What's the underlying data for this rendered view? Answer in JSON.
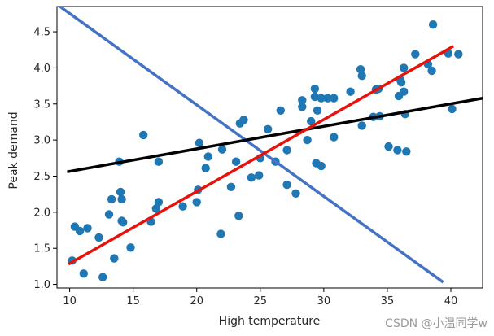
{
  "chart_data": {
    "type": "scatter",
    "title": "",
    "xlabel": "High temperature",
    "ylabel": "Peak demand",
    "xlim": [
      9.0,
      42.5
    ],
    "ylim": [
      0.95,
      4.85
    ],
    "x_ticks": [
      10,
      15,
      20,
      25,
      30,
      35,
      40
    ],
    "y_ticks": [
      1.0,
      1.5,
      2.0,
      2.5,
      3.0,
      3.5,
      4.0,
      4.5
    ],
    "x_tick_labels": [
      "10",
      "15",
      "20",
      "25",
      "30",
      "35",
      "40"
    ],
    "y_tick_labels": [
      "1.0",
      "1.5",
      "2.0",
      "2.5",
      "3.0",
      "3.5",
      "4.0",
      "4.5"
    ],
    "grid": false,
    "points_color": "#1f77b4",
    "points": [
      [
        10.2,
        1.33
      ],
      [
        10.4,
        1.8
      ],
      [
        10.8,
        1.74
      ],
      [
        11.1,
        1.15
      ],
      [
        11.4,
        1.78
      ],
      [
        12.3,
        1.65
      ],
      [
        12.6,
        1.1
      ],
      [
        13.1,
        1.97
      ],
      [
        13.3,
        2.18
      ],
      [
        13.5,
        1.36
      ],
      [
        13.9,
        2.7
      ],
      [
        14.1,
        2.18
      ],
      [
        14.0,
        2.28
      ],
      [
        14.1,
        1.88
      ],
      [
        14.2,
        1.86
      ],
      [
        14.8,
        1.51
      ],
      [
        15.8,
        3.07
      ],
      [
        16.4,
        1.87
      ],
      [
        16.8,
        2.05
      ],
      [
        17.0,
        2.14
      ],
      [
        17.0,
        2.7
      ],
      [
        18.9,
        2.08
      ],
      [
        20.0,
        2.14
      ],
      [
        20.1,
        2.31
      ],
      [
        20.2,
        2.96
      ],
      [
        20.7,
        2.61
      ],
      [
        20.9,
        2.77
      ],
      [
        21.9,
        1.7
      ],
      [
        22.0,
        2.87
      ],
      [
        22.7,
        2.35
      ],
      [
        23.1,
        2.7
      ],
      [
        23.3,
        1.95
      ],
      [
        23.4,
        3.23
      ],
      [
        23.7,
        3.28
      ],
      [
        24.3,
        2.48
      ],
      [
        24.9,
        2.51
      ],
      [
        25.0,
        2.75
      ],
      [
        25.6,
        3.15
      ],
      [
        26.2,
        2.7
      ],
      [
        26.6,
        3.41
      ],
      [
        27.1,
        2.86
      ],
      [
        27.1,
        2.38
      ],
      [
        27.8,
        2.26
      ],
      [
        28.3,
        3.55
      ],
      [
        28.3,
        3.46
      ],
      [
        28.7,
        3.0
      ],
      [
        29.0,
        3.26
      ],
      [
        29.3,
        3.71
      ],
      [
        29.3,
        3.6
      ],
      [
        29.4,
        2.68
      ],
      [
        29.5,
        3.41
      ],
      [
        29.8,
        2.64
      ],
      [
        29.8,
        3.58
      ],
      [
        30.3,
        3.58
      ],
      [
        30.8,
        3.58
      ],
      [
        30.8,
        3.04
      ],
      [
        32.1,
        3.67
      ],
      [
        32.9,
        3.98
      ],
      [
        33.0,
        3.89
      ],
      [
        33.0,
        3.2
      ],
      [
        33.9,
        3.32
      ],
      [
        34.1,
        3.7
      ],
      [
        34.3,
        3.71
      ],
      [
        34.4,
        3.33
      ],
      [
        35.1,
        2.91
      ],
      [
        35.8,
        2.86
      ],
      [
        35.9,
        3.61
      ],
      [
        36.0,
        3.84
      ],
      [
        36.1,
        3.8
      ],
      [
        36.3,
        3.67
      ],
      [
        36.3,
        4.0
      ],
      [
        36.4,
        3.36
      ],
      [
        36.5,
        2.84
      ],
      [
        37.2,
        4.19
      ],
      [
        38.2,
        4.05
      ],
      [
        38.5,
        3.96
      ],
      [
        38.6,
        4.6
      ],
      [
        39.8,
        4.2
      ],
      [
        40.1,
        3.43
      ],
      [
        40.6,
        4.19
      ]
    ],
    "series": [
      {
        "name": "blue-line",
        "color": "#4472c4",
        "x": [
          9.0,
          39.4
        ],
        "y": [
          4.88,
          1.03
        ]
      },
      {
        "name": "black-line",
        "color": "#000000",
        "x": [
          9.8,
          42.5
        ],
        "y": [
          2.56,
          3.58
        ]
      },
      {
        "name": "red-line",
        "color": "#e8120c",
        "x": [
          9.9,
          40.2
        ],
        "y": [
          1.28,
          4.3
        ]
      }
    ],
    "watermark": "CSDN @小温同学w"
  }
}
